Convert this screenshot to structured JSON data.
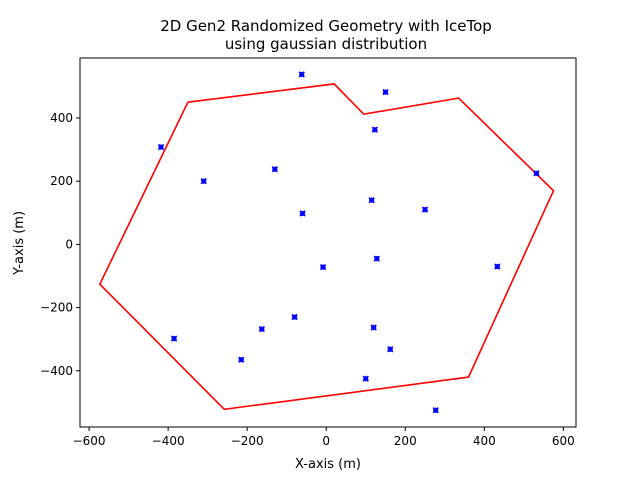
{
  "chart_data": {
    "type": "scatter",
    "title_line1": "2D Gen2 Randomized Geometry with IceTop",
    "title_line2": "using gaussian distribution",
    "xlabel": "X-axis (m)",
    "ylabel": "Y-axis (m)",
    "xlim": [
      -623,
      632
    ],
    "ylim": [
      -578,
      590
    ],
    "xticks": [
      -600,
      -400,
      -200,
      0,
      200,
      400,
      600
    ],
    "xtick_labels": [
      "−600",
      "−400",
      "−200",
      "0",
      "200",
      "400",
      "600"
    ],
    "yticks": [
      -400,
      -200,
      0,
      200,
      400
    ],
    "ytick_labels": [
      "−400",
      "−200",
      "0",
      "200",
      "400"
    ],
    "grid": false,
    "legend": "none",
    "series": [
      {
        "type": "line",
        "color": "#ff0000",
        "x": [
          -350,
          20,
          95,
          335,
          575,
          360,
          -258,
          -573,
          -350
        ],
        "y": [
          450,
          508,
          412,
          463,
          170,
          -420,
          -522,
          -126,
          450
        ]
      },
      {
        "type": "scatter",
        "color": "#0000ff",
        "marker": "x",
        "x": [
          -62,
          150,
          -418,
          123,
          -310,
          -130,
          532,
          -60,
          115,
          250,
          128,
          -8,
          433,
          -385,
          -163,
          -80,
          120,
          162,
          -215,
          100,
          277
        ],
        "y": [
          538,
          482,
          308,
          363,
          200,
          238,
          225,
          98,
          140,
          110,
          -45,
          -72,
          -70,
          -298,
          -268,
          -230,
          -263,
          -332,
          -365,
          -425,
          -525
        ]
      }
    ]
  }
}
